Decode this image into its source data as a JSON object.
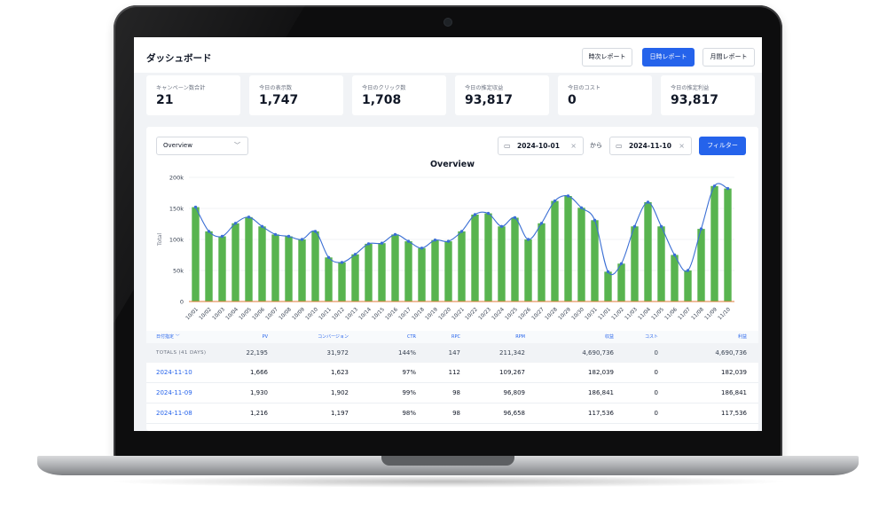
{
  "dashboard": {
    "title": "ダッシュボード",
    "report_buttons": [
      "時次レポート",
      "日時レポート",
      "月間レポート"
    ],
    "active_report": "日時レポート"
  },
  "kpis": [
    {
      "label": "キャンペーン数合計",
      "value": "21"
    },
    {
      "label": "今日の表示数",
      "value": "1,747"
    },
    {
      "label": "今日のクリック数",
      "value": "1,708"
    },
    {
      "label": "今日の推定収益",
      "value": "93,817"
    },
    {
      "label": "今日のコスト",
      "value": "0"
    },
    {
      "label": "今日の推定利益",
      "value": "93,817"
    }
  ],
  "filters": {
    "view": "Overview",
    "date_from": "2024-10-01",
    "separator": "から",
    "date_to": "2024-11-10",
    "filter_button": "フィルター"
  },
  "chart_data": {
    "type": "bar",
    "title": "Overview",
    "ylabel": "Total",
    "ylim": [
      0,
      200000
    ],
    "yticks": [
      "0",
      "50k",
      "100k",
      "150k",
      "200k"
    ],
    "categories": [
      "10/01",
      "10/02",
      "10/03",
      "10/04",
      "10/05",
      "10/06",
      "10/07",
      "10/08",
      "10/09",
      "10/10",
      "10/11",
      "10/12",
      "10/13",
      "10/14",
      "10/15",
      "10/16",
      "10/17",
      "10/18",
      "10/19",
      "10/20",
      "10/21",
      "10/22",
      "10/23",
      "10/24",
      "10/25",
      "10/26",
      "10/27",
      "10/28",
      "10/29",
      "10/30",
      "10/31",
      "11/01",
      "11/02",
      "11/03",
      "11/04",
      "11/05",
      "11/06",
      "11/07",
      "11/08",
      "11/09",
      "11/10"
    ],
    "series": [
      {
        "type": "bar",
        "color": "#58b44f",
        "values": [
          152000,
          113000,
          105000,
          126000,
          136000,
          121000,
          108000,
          105000,
          100000,
          113000,
          71000,
          63000,
          76000,
          93000,
          94000,
          108000,
          97000,
          86000,
          99000,
          97000,
          113000,
          140000,
          142000,
          121000,
          135000,
          100000,
          126000,
          162000,
          170000,
          151000,
          131000,
          48000,
          61000,
          121000,
          160000,
          121000,
          75000,
          50000,
          117000,
          186000,
          182000
        ]
      },
      {
        "type": "line",
        "color": "#3b6fd4",
        "values": [
          152000,
          113000,
          105000,
          126000,
          136000,
          121000,
          108000,
          105000,
          100000,
          113000,
          71000,
          63000,
          76000,
          93000,
          94000,
          108000,
          97000,
          86000,
          99000,
          97000,
          113000,
          140000,
          142000,
          121000,
          135000,
          100000,
          126000,
          162000,
          170000,
          151000,
          131000,
          48000,
          61000,
          121000,
          160000,
          121000,
          75000,
          50000,
          117000,
          186000,
          182000
        ]
      }
    ]
  },
  "table": {
    "headers": [
      "日付指定 ﹀",
      "PV",
      "コンバージョン",
      "CTR",
      "RPC",
      "RPM",
      "収益",
      "コスト",
      "利益"
    ],
    "totals": [
      "TOTALS (41 DAYS)",
      "22,195",
      "31,972",
      "144%",
      "147",
      "211,342",
      "4,690,736",
      "0",
      "4,690,736"
    ],
    "rows": [
      [
        "2024-11-10",
        "1,666",
        "1,623",
        "97%",
        "112",
        "109,267",
        "182,039",
        "0",
        "182,039"
      ],
      [
        "2024-11-09",
        "1,930",
        "1,902",
        "99%",
        "98",
        "96,809",
        "186,841",
        "0",
        "186,841"
      ],
      [
        "2024-11-08",
        "1,216",
        "1,197",
        "98%",
        "98",
        "96,658",
        "117,536",
        "0",
        "117,536"
      ]
    ]
  }
}
